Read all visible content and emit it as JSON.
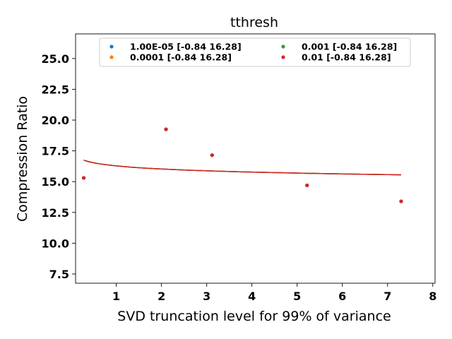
{
  "chart_data": {
    "type": "scatter",
    "title": "tthresh",
    "xlabel": "SVD truncation level for 99% of variance",
    "ylabel": "Compression Ratio",
    "xlim": [
      0.1,
      8.05
    ],
    "ylim": [
      6.75,
      27.0
    ],
    "xticks": [
      1,
      2,
      3,
      4,
      5,
      6,
      7,
      8
    ],
    "xtick_labels": [
      "1",
      "2",
      "3",
      "4",
      "5",
      "6",
      "7",
      "8"
    ],
    "yticks": [
      7.5,
      10.0,
      12.5,
      15.0,
      17.5,
      20.0,
      22.5,
      25.0
    ],
    "ytick_labels": [
      "7.5",
      "10.0",
      "12.5",
      "15.0",
      "17.5",
      "20.0",
      "22.5",
      "25.0"
    ],
    "grid": false,
    "legend": {
      "placement": "upper-center",
      "columns": 2
    },
    "series": [
      {
        "name": "1.00E-05 [-0.84 16.28]",
        "color": "#1f77b4",
        "fit": [
          -0.84,
          16.28
        ]
      },
      {
        "name": "0.0001 [-0.84 16.28]",
        "color": "#ff7f0e",
        "fit": [
          -0.84,
          16.28
        ]
      },
      {
        "name": "0.001 [-0.84 16.28]",
        "color": "#2ca02c",
        "fit": [
          -0.84,
          16.28
        ]
      },
      {
        "name": "0.01 [-0.84 16.28]",
        "color": "#d62728",
        "fit": [
          -0.84,
          16.28
        ]
      }
    ],
    "points": {
      "x": [
        0.28,
        2.1,
        3.12,
        5.22,
        7.3
      ],
      "y": [
        15.3,
        19.25,
        17.15,
        14.7,
        13.4
      ]
    },
    "fit_x_range": [
      0.28,
      7.3
    ]
  }
}
